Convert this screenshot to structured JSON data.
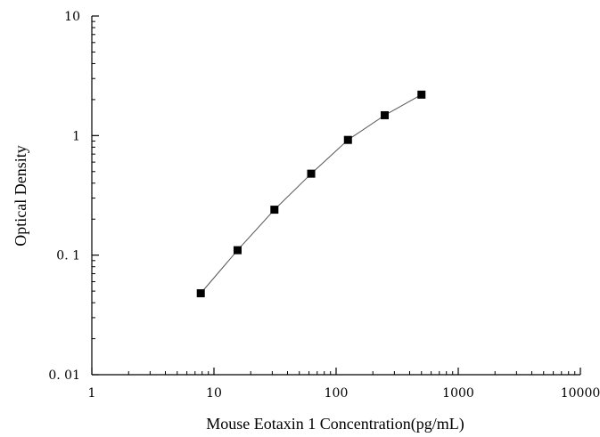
{
  "chart_data": {
    "type": "scatter",
    "xlabel": "Mouse Eotaxin 1 Concentration(pg/mL)",
    "ylabel": "Optical Density",
    "xscale": "log",
    "yscale": "log",
    "xlim": [
      1,
      10000
    ],
    "ylim": [
      0.01,
      10
    ],
    "x_ticks": [
      1,
      10,
      100,
      1000,
      10000
    ],
    "x_tick_labels": [
      "1",
      "10",
      "100",
      "1000",
      "10000"
    ],
    "y_ticks": [
      0.01,
      0.1,
      1,
      10
    ],
    "y_tick_labels": [
      "0. 01",
      "0. 1",
      "1",
      "10"
    ],
    "grid": false,
    "series": [
      {
        "x": [
          7.8,
          15.6,
          31.25,
          62.5,
          125,
          250,
          500
        ],
        "y": [
          0.048,
          0.11,
          0.24,
          0.48,
          0.92,
          1.48,
          2.2
        ],
        "color": "#000000",
        "marker": "square",
        "line_color": "#555555"
      }
    ]
  }
}
